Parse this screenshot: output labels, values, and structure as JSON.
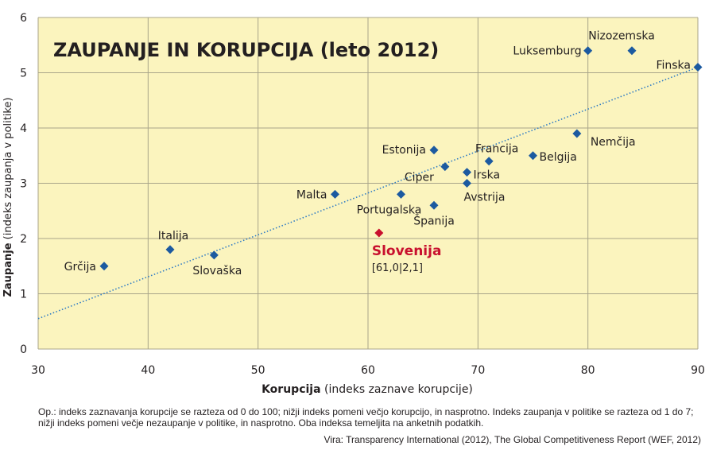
{
  "chart_data": {
    "type": "scatter",
    "title": "ZAUPANJE IN KORUPCIJA (leto 2012)",
    "xlabel_bold": "Korupcija",
    "xlabel_rest": " (indeks zaznave korupcije)",
    "ylabel_bold": "Zaupanje",
    "ylabel_rest": " (indeks zaupanja v politike)",
    "xlim": [
      30,
      90
    ],
    "ylim": [
      0,
      6
    ],
    "xticks": [
      "30",
      "40",
      "50",
      "60",
      "70",
      "80",
      "90"
    ],
    "yticks": [
      "0",
      "1",
      "2",
      "3",
      "4",
      "5",
      "6"
    ],
    "grid": true,
    "background_color": "#fbf4be",
    "marker_color": "#1c5aa0",
    "highlight_color": "#c8102e",
    "trendline": {
      "x": [
        30,
        90
      ],
      "y": [
        0.55,
        5.1
      ],
      "color": "#2e7bc4",
      "style": "dotted"
    },
    "points": [
      {
        "name": "Grčija",
        "x": 36,
        "y": 1.5
      },
      {
        "name": "Italija",
        "x": 42,
        "y": 1.8
      },
      {
        "name": "Slovaška",
        "x": 46,
        "y": 1.7
      },
      {
        "name": "Malta",
        "x": 57,
        "y": 2.8
      },
      {
        "name": "Portugalska",
        "x": 63,
        "y": 2.8
      },
      {
        "name": "Estonija",
        "x": 66,
        "y": 3.6
      },
      {
        "name": "Španija",
        "x": 66,
        "y": 2.6
      },
      {
        "name": "Ciper",
        "x": 67,
        "y": 3.3
      },
      {
        "name": "Irska",
        "x": 69,
        "y": 3.2
      },
      {
        "name": "Avstrija",
        "x": 69,
        "y": 3.0
      },
      {
        "name": "Francija",
        "x": 71,
        "y": 3.4
      },
      {
        "name": "Belgija",
        "x": 75,
        "y": 3.5
      },
      {
        "name": "Nemčija",
        "x": 79,
        "y": 3.9
      },
      {
        "name": "Luksemburg",
        "x": 80,
        "y": 5.4
      },
      {
        "name": "Nizozemska",
        "x": 84,
        "y": 5.4
      },
      {
        "name": "Finska",
        "x": 90,
        "y": 5.1
      }
    ],
    "highlight": {
      "name": "Slovenija",
      "x": 61,
      "y": 2.1,
      "label": "[61,0|2,1]"
    }
  },
  "footnote": "Op.: indeks zaznavanja korupcije se razteza od 0 do 100; nižji indeks pomeni večjo korupcijo, in nasprotno. Indeks zaupanja v politike se razteza od 1 do 7; nižji indeks pomeni večje nezaupanje v politike, in nasprotno. Oba indeksa temeljita na anketnih podatkih.",
  "source": "Vira: Transparency International (2012), The Global Competitiveness Report (WEF, 2012)"
}
